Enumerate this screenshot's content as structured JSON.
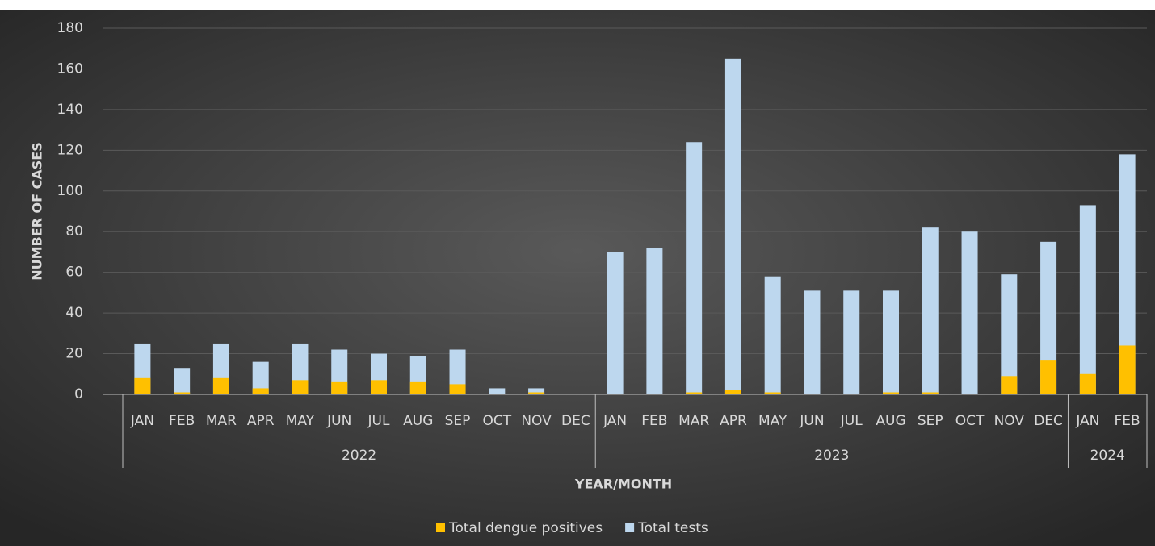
{
  "chart_data": {
    "type": "bar",
    "stacked": false,
    "y_label": "NUMBER OF CASES",
    "x_label": "YEAR/MONTH",
    "categories": [
      "JAN",
      "FEB",
      "MAR",
      "APR",
      "MAY",
      "JUN",
      "JUL",
      "AUG",
      "SEP",
      "OCT",
      "NOV",
      "DEC",
      "JAN",
      "FEB",
      "MAR",
      "APR",
      "MAY",
      "JUN",
      "JUL",
      "AUG",
      "SEP",
      "OCT",
      "NOV",
      "DEC",
      "JAN",
      "FEB"
    ],
    "groups": [
      {
        "name": "2022",
        "span": 12
      },
      {
        "name": "2023",
        "span": 12
      },
      {
        "name": "2024",
        "span": 2
      }
    ],
    "series": [
      {
        "name": "Total dengue positives",
        "color": "#ffc000",
        "values": [
          8,
          1,
          8,
          3,
          7,
          6,
          7,
          6,
          5,
          0,
          1,
          0,
          0,
          0,
          1,
          2,
          1,
          0,
          0,
          1,
          1,
          0,
          9,
          17,
          10,
          24
        ]
      },
      {
        "name": "Total tests",
        "color": "#bdd7ee",
        "values": [
          25,
          13,
          25,
          16,
          25,
          22,
          20,
          19,
          22,
          3,
          3,
          0,
          70,
          72,
          124,
          165,
          58,
          51,
          51,
          51,
          82,
          80,
          59,
          75,
          93,
          118
        ]
      }
    ],
    "ylim": [
      0,
      180
    ],
    "yticks": [
      0,
      20,
      40,
      60,
      80,
      100,
      120,
      140,
      160,
      180
    ],
    "grid": true,
    "legend": "bottom"
  }
}
